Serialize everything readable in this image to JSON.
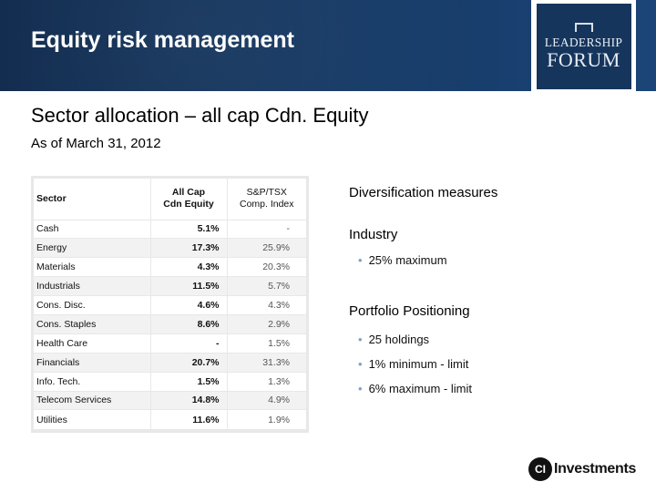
{
  "header": {
    "title": "Equity risk management"
  },
  "logo": {
    "line1": "LEADERSHIP",
    "line2": "FORUM"
  },
  "subtitle": "Sector allocation – all cap Cdn. Equity",
  "as_of": "As of March 31, 2012",
  "table": {
    "headers": {
      "sector": "Sector",
      "fund_line1": "All Cap",
      "fund_line2": "Cdn Equity",
      "index_line1": "S&P/TSX",
      "index_line2": "Comp. Index"
    },
    "rows": [
      {
        "sector": "Cash",
        "fund": "5.1%",
        "index": "-"
      },
      {
        "sector": "Energy",
        "fund": "17.3%",
        "index": "25.9%"
      },
      {
        "sector": "Materials",
        "fund": "4.3%",
        "index": "20.3%"
      },
      {
        "sector": "Industrials",
        "fund": "11.5%",
        "index": "5.7%"
      },
      {
        "sector": "Cons. Disc.",
        "fund": "4.6%",
        "index": "4.3%"
      },
      {
        "sector": "Cons. Staples",
        "fund": "8.6%",
        "index": "2.9%"
      },
      {
        "sector": "Health Care",
        "fund": "-",
        "index": "1.5%"
      },
      {
        "sector": "Financials",
        "fund": "20.7%",
        "index": "31.3%"
      },
      {
        "sector": "Info. Tech.",
        "fund": "1.5%",
        "index": "1.3%"
      },
      {
        "sector": "Telecom Services",
        "fund": "14.8%",
        "index": "4.9%"
      },
      {
        "sector": "Utilities",
        "fund": "11.6%",
        "index": "1.9%"
      }
    ]
  },
  "diversification": {
    "title": "Diversification measures",
    "industry": {
      "label": "Industry",
      "bullets": [
        "25% maximum"
      ]
    },
    "positioning": {
      "label": "Portfolio Positioning",
      "bullets": [
        "25 holdings",
        "1% minimum - limit",
        "6% maximum - limit"
      ]
    }
  },
  "footer_logo": {
    "mark": "CI",
    "text": "Investments"
  }
}
